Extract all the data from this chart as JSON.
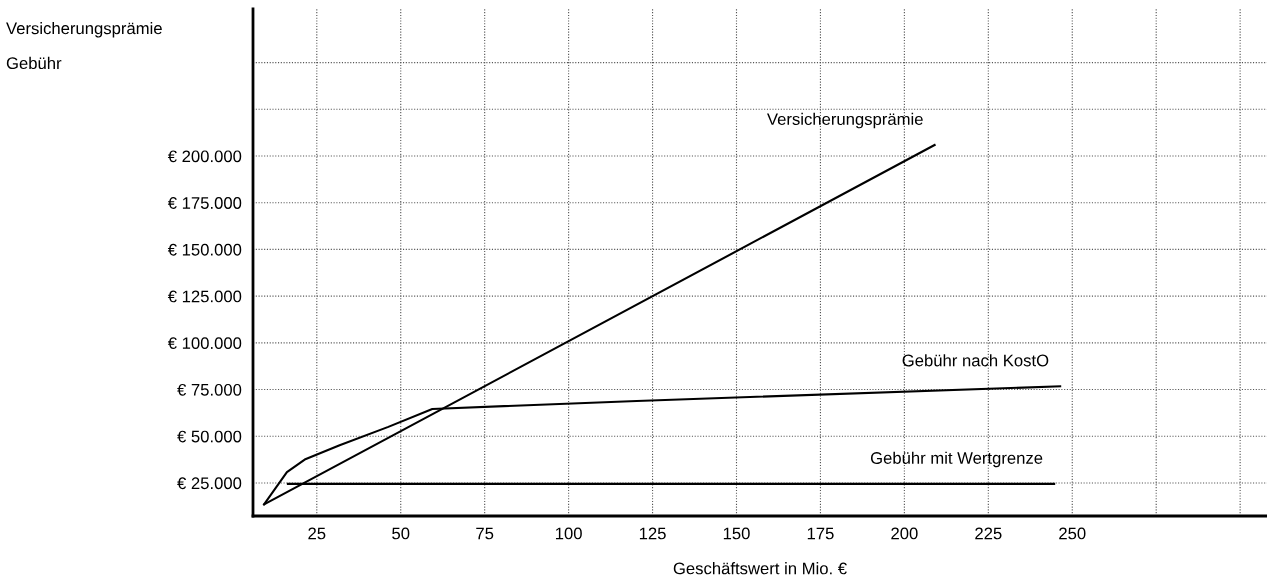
{
  "chart_data": {
    "type": "line",
    "xlabel": "Geschäftswert in Mio. €",
    "ylabel": "Versicherungsprämie\nGebühr",
    "series": [
      {
        "name": "Versicherungsprämie",
        "color": "#000000",
        "x": [
          9.3,
          209
        ],
        "values": [
          13500,
          205900
        ]
      },
      {
        "name": "Gebühr nach KostO",
        "color": "#000000",
        "x": [
          9.3,
          16.1,
          21.4,
          31.8,
          46.3,
          59.4,
          120.3,
          246.4
        ],
        "values": [
          13500,
          30800,
          37500,
          45200,
          55000,
          64600,
          68900,
          76700
        ]
      },
      {
        "name": "Gebühr mit Wertgrenze",
        "color": "#000000",
        "x": [
          16.4,
          244.6
        ],
        "values": [
          24500,
          24500
        ]
      }
    ],
    "xlim": [
      6,
      308
    ],
    "ylim": [
      7300,
      278700
    ],
    "xticks": [
      25,
      50,
      75,
      100,
      125,
      150,
      175,
      200,
      225,
      250,
      {
        "value": 275,
        "label": null
      },
      {
        "value": 300,
        "label": null
      }
    ],
    "yticks": [
      {
        "value": 25000,
        "label": "€ 25.000"
      },
      {
        "value": 50000,
        "label": "€ 50.000"
      },
      {
        "value": 75000,
        "label": "€ 75.000"
      },
      {
        "value": 100000,
        "label": "€ 100.000"
      },
      {
        "value": 125000,
        "label": "€ 125.000"
      },
      {
        "value": 150000,
        "label": "€ 150.000"
      },
      {
        "value": 175000,
        "label": "€ 175.000"
      },
      {
        "value": 200000,
        "label": "€ 200.000"
      },
      {
        "value": 225000,
        "label": null
      },
      {
        "value": 250000,
        "label": null
      }
    ],
    "grid": true,
    "marker": "none",
    "line_style": "solid"
  }
}
